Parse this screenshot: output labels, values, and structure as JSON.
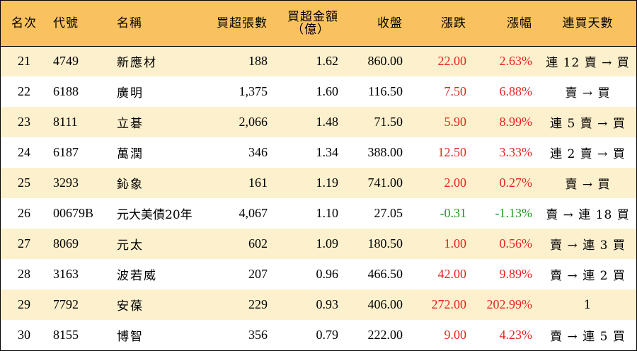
{
  "table": {
    "headers": {
      "rank": "名次",
      "code": "代號",
      "name": "名稱",
      "net_buy_lots": "買超張數",
      "net_buy_amount_line1": "買超金額",
      "net_buy_amount_line2": "（億）",
      "close": "收盤",
      "change": "漲跌",
      "change_pct": "漲幅",
      "consecutive_days": "連買天數"
    },
    "rows": [
      {
        "rank": "21",
        "code": "4749",
        "name": "新應材",
        "lots": "188",
        "amount": "1.62",
        "close": "860.00",
        "change": "22.00",
        "pct": "2.63%",
        "days": "連 12 賣 → 買",
        "trend": "up"
      },
      {
        "rank": "22",
        "code": "6188",
        "name": "廣明",
        "lots": "1,375",
        "amount": "1.60",
        "close": "116.50",
        "change": "7.50",
        "pct": "6.88%",
        "days": "賣 → 買",
        "trend": "up"
      },
      {
        "rank": "23",
        "code": "8111",
        "name": "立碁",
        "lots": "2,066",
        "amount": "1.48",
        "close": "71.50",
        "change": "5.90",
        "pct": "8.99%",
        "days": "連 5 賣 → 買",
        "trend": "up"
      },
      {
        "rank": "24",
        "code": "6187",
        "name": "萬潤",
        "lots": "346",
        "amount": "1.34",
        "close": "388.00",
        "change": "12.50",
        "pct": "3.33%",
        "days": "連 2 賣 → 買",
        "trend": "up"
      },
      {
        "rank": "25",
        "code": "3293",
        "name": "鈊象",
        "lots": "161",
        "amount": "1.19",
        "close": "741.00",
        "change": "2.00",
        "pct": "0.27%",
        "days": "賣 → 買",
        "trend": "up"
      },
      {
        "rank": "26",
        "code": "00679B",
        "name": "元大美債20年",
        "lots": "4,067",
        "amount": "1.10",
        "close": "27.05",
        "change": "-0.31",
        "pct": "-1.13%",
        "days": "賣 → 連 18 買",
        "trend": "down"
      },
      {
        "rank": "27",
        "code": "8069",
        "name": "元太",
        "lots": "602",
        "amount": "1.09",
        "close": "180.50",
        "change": "1.00",
        "pct": "0.56%",
        "days": "賣 → 連 3 買",
        "trend": "up"
      },
      {
        "rank": "28",
        "code": "3163",
        "name": "波若威",
        "lots": "207",
        "amount": "0.96",
        "close": "466.50",
        "change": "42.00",
        "pct": "9.89%",
        "days": "賣 → 連 2 買",
        "trend": "up"
      },
      {
        "rank": "29",
        "code": "7792",
        "name": "安葆",
        "lots": "229",
        "amount": "0.93",
        "close": "406.00",
        "change": "272.00",
        "pct": "202.99%",
        "days": "1",
        "trend": "up"
      },
      {
        "rank": "30",
        "code": "8155",
        "name": "博智",
        "lots": "356",
        "amount": "0.79",
        "close": "222.00",
        "change": "9.00",
        "pct": "4.23%",
        "days": "賣 → 連 5 買",
        "trend": "up"
      }
    ]
  },
  "colors": {
    "header_bg": "#f9c25e",
    "odd_row_bg": "#fdf0cd",
    "even_row_bg": "#ffffff",
    "up": "#e8231f",
    "down": "#1a9a1a"
  }
}
